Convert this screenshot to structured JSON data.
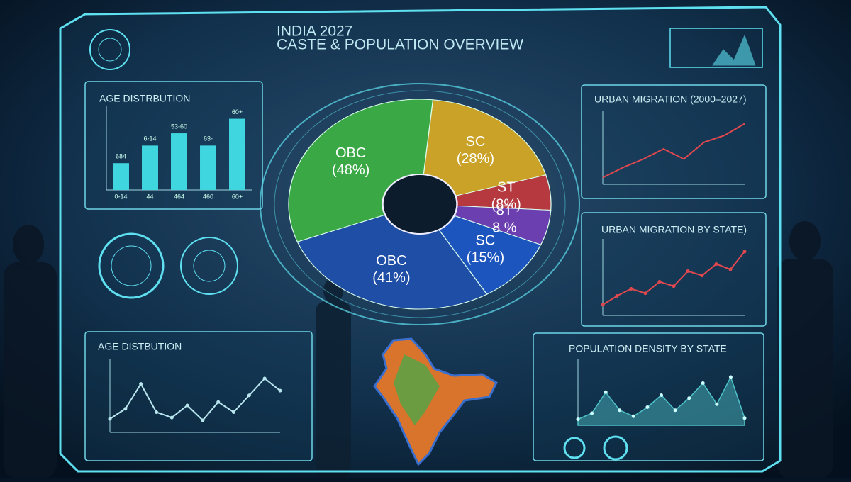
{
  "header": {
    "title": "INDIA 2027",
    "subtitle": "CASTE & POPULATION OVERVIEW"
  },
  "chart_data": [
    {
      "type": "bar",
      "title": "AGE DISTRBUTION",
      "categories": [
        "0-14",
        "44",
        "464",
        "460",
        "60+"
      ],
      "values": [
        35,
        58,
        74,
        58,
        93
      ],
      "color": "#3fd6e0",
      "ylim": [
        0,
        100
      ],
      "annotations": [
        "684",
        "6-14",
        "53-60",
        "63-",
        "60+"
      ]
    },
    {
      "type": "pie",
      "categories": [
        "SC",
        "ST",
        "8T",
        "SC",
        "OBC",
        "OBC"
      ],
      "values": [
        28,
        8,
        8,
        15,
        41,
        48
      ],
      "value_labels": [
        "(28%)",
        "(8%)",
        "8 %",
        "(15%)",
        "(41%)",
        "(48%)"
      ],
      "colors": [
        "#c9a227",
        "#b5393f",
        "#6b3fb0",
        "#1b55bd",
        "#1f4ea6",
        "#3aa845"
      ]
    },
    {
      "type": "line",
      "title": "URBAN MIGRATION (2000–2027)",
      "categories": [
        null,
        null,
        null,
        null,
        null,
        null,
        null,
        null
      ],
      "series": [
        {
          "color": "#e0484f",
          "values": [
            8,
            20,
            30,
            42,
            30,
            50,
            58,
            72
          ]
        }
      ],
      "ylim": [
        0,
        80
      ]
    },
    {
      "type": "line",
      "title": "URBAN MIGRATION BY STATE)",
      "categories": [
        null,
        null,
        null,
        null,
        null,
        null,
        null,
        null,
        null,
        null,
        null
      ],
      "series": [
        {
          "color": "#e0484f",
          "values": [
            12,
            22,
            30,
            25,
            38,
            33,
            50,
            45,
            58,
            52,
            72
          ]
        }
      ],
      "ylim": [
        0,
        80
      ],
      "markers": true
    },
    {
      "type": "line",
      "title": "AGE DISTBUTION",
      "categories": [
        null,
        null,
        null,
        null,
        null,
        null,
        null,
        null,
        null,
        null,
        null,
        null
      ],
      "series": [
        {
          "color": "#b9e6ee",
          "values": [
            20,
            35,
            72,
            30,
            22,
            40,
            18,
            45,
            30,
            55,
            80,
            62
          ]
        }
      ],
      "ylim": [
        0,
        100
      ],
      "markers": true
    },
    {
      "type": "area",
      "title": "POPULATION DENSITY BY STATE",
      "categories": [
        null,
        null,
        null,
        null,
        null,
        null,
        null,
        null,
        null,
        null,
        null,
        null,
        null
      ],
      "series": [
        {
          "color": "#4fc3c9",
          "values": [
            10,
            20,
            55,
            25,
            15,
            30,
            50,
            25,
            45,
            70,
            35,
            80,
            12
          ]
        }
      ],
      "ylim": [
        0,
        100
      ],
      "markers": true
    }
  ]
}
